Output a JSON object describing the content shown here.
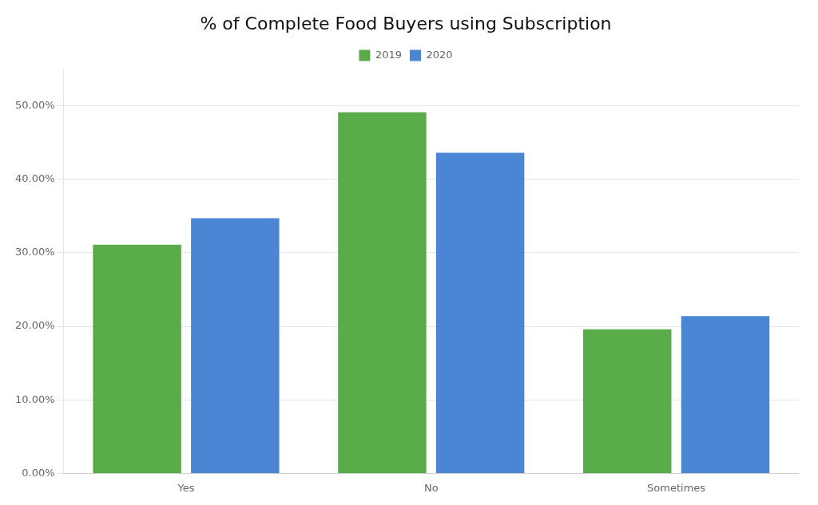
{
  "chart_data": {
    "type": "bar",
    "title": "% of Complete Food Buyers using Subscription",
    "categories": [
      "Yes",
      "No",
      "Sometimes"
    ],
    "series": [
      {
        "name": "2019",
        "color": "#5aab4a",
        "values": [
          0.311,
          0.491,
          0.196
        ]
      },
      {
        "name": "2020",
        "color": "#4a86d4",
        "values": [
          0.347,
          0.436,
          0.214
        ]
      }
    ],
    "ylim": [
      0,
      0.55
    ],
    "yticks": [
      {
        "value": 0.0,
        "label": "0.00%"
      },
      {
        "value": 0.1,
        "label": "10.00%"
      },
      {
        "value": 0.2,
        "label": "20.00%"
      },
      {
        "value": 0.3,
        "label": "30.00%"
      },
      {
        "value": 0.4,
        "label": "40.00%"
      },
      {
        "value": 0.5,
        "label": "50.00%"
      }
    ],
    "grid": true,
    "legend": "top"
  }
}
